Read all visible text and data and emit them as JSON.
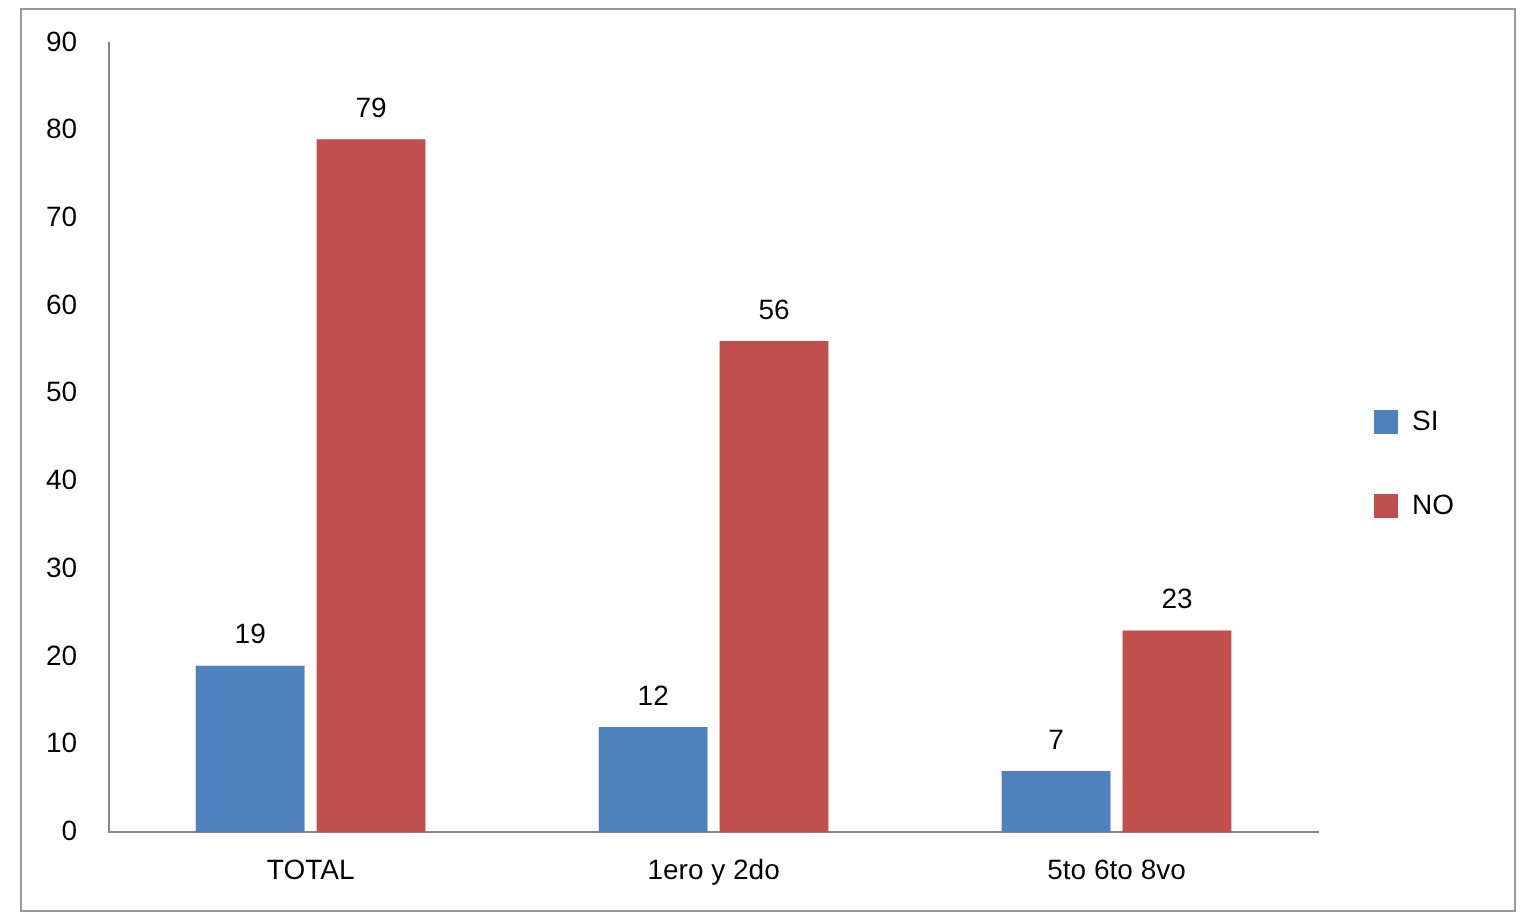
{
  "chart_data": {
    "type": "bar",
    "categories": [
      "TOTAL",
      "1ero y 2do",
      "5to 6to 8vo"
    ],
    "series": [
      {
        "name": "SI",
        "color": "#4f81bd",
        "values": [
          19,
          12,
          7
        ]
      },
      {
        "name": "NO",
        "color": "#c0504d",
        "values": [
          79,
          56,
          23
        ]
      }
    ],
    "ylim": [
      0,
      90
    ],
    "yticks": [
      0,
      10,
      20,
      30,
      40,
      50,
      60,
      70,
      80,
      90
    ],
    "grid": false,
    "legend": "right",
    "data_labels": true
  }
}
